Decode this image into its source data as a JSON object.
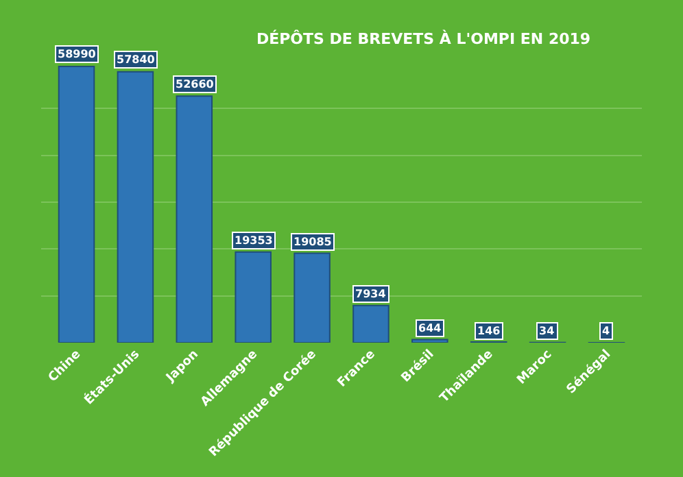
{
  "chart_data": {
    "type": "bar",
    "title": "DÉPÔTS DE BREVETS À L'OMPI EN 2019",
    "categories": [
      "Chine",
      "États-Unis",
      "Japon",
      "Allemagne",
      "République de Corée",
      "France",
      "Brésil",
      "Thaïlande",
      "Maroc",
      "Sénégal"
    ],
    "values": [
      58990,
      57840,
      52660,
      19353,
      19085,
      7934,
      644,
      146,
      34,
      4
    ],
    "color": "#2e75b6",
    "ylim": [
      0,
      60000
    ],
    "yticks": [
      {
        "value": 10000,
        "label": null
      },
      {
        "value": 20000,
        "label": null
      },
      {
        "value": 30000,
        "label": null
      },
      {
        "value": 40000,
        "label": null
      },
      {
        "value": 50000,
        "label": null
      }
    ],
    "tick_labels": "x",
    "grid": "y",
    "data_labels": true
  }
}
